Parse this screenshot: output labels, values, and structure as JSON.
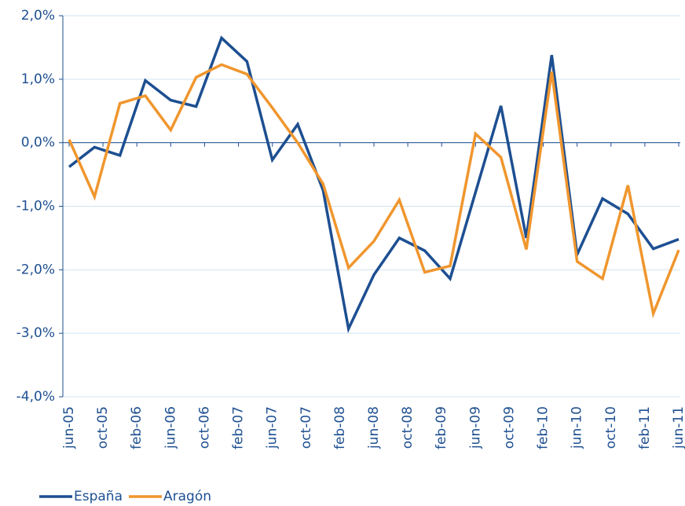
{
  "chart_data": {
    "type": "line",
    "x": [
      0,
      3,
      6,
      9,
      12,
      15,
      18,
      21,
      24,
      27,
      30,
      33,
      36,
      39,
      42,
      45,
      48,
      51,
      54,
      57,
      60,
      63,
      66,
      69,
      72
    ],
    "xlim": [
      0,
      72
    ],
    "xticks": [
      {
        "value": 0,
        "label": "jun-05"
      },
      {
        "value": 4,
        "label": "oct-05"
      },
      {
        "value": 8,
        "label": "feb-06"
      },
      {
        "value": 12,
        "label": "jun-06"
      },
      {
        "value": 16,
        "label": "oct-06"
      },
      {
        "value": 20,
        "label": "feb-07"
      },
      {
        "value": 24,
        "label": "jun-07"
      },
      {
        "value": 28,
        "label": "oct-07"
      },
      {
        "value": 32,
        "label": "feb-08"
      },
      {
        "value": 36,
        "label": "jun-08"
      },
      {
        "value": 40,
        "label": "oct-08"
      },
      {
        "value": 44,
        "label": "feb-09"
      },
      {
        "value": 48,
        "label": "jun-09"
      },
      {
        "value": 52,
        "label": "oct-09"
      },
      {
        "value": 56,
        "label": "feb-10"
      },
      {
        "value": 60,
        "label": "jun-10"
      },
      {
        "value": 64,
        "label": "oct-10"
      },
      {
        "value": 68,
        "label": "feb-11"
      },
      {
        "value": 72,
        "label": "jun-11"
      }
    ],
    "ylim": [
      -4,
      2
    ],
    "yticks": [
      {
        "value": -4,
        "label": "-4,0%"
      },
      {
        "value": -3,
        "label": "-3,0%"
      },
      {
        "value": -2,
        "label": "-2,0%"
      },
      {
        "value": -1,
        "label": "-1,0%"
      },
      {
        "value": 0,
        "label": "0,0%"
      },
      {
        "value": 1,
        "label": "1,0%"
      },
      {
        "value": 2,
        "label": "2,0%"
      }
    ],
    "grid": true,
    "legend": "bottom-left",
    "series": [
      {
        "name": "España",
        "color": "#1d4f91",
        "values": [
          -0.38,
          -0.07,
          -0.2,
          0.98,
          0.67,
          0.57,
          1.65,
          1.28,
          -0.27,
          0.29,
          -0.75,
          -2.93,
          -2.08,
          -1.5,
          -1.7,
          -2.14,
          -0.78,
          0.58,
          -1.5,
          1.38,
          -1.76,
          -0.88,
          -1.12,
          -1.67,
          -1.52
        ]
      },
      {
        "name": "Aragón",
        "color": "#f0962e",
        "values": [
          0.05,
          -0.85,
          0.62,
          0.74,
          0.2,
          1.03,
          1.23,
          1.08,
          0.55,
          0.0,
          -0.65,
          -1.97,
          -1.55,
          -0.9,
          -2.04,
          -1.94,
          0.14,
          -0.23,
          -1.68,
          1.12,
          -1.87,
          -2.14,
          -0.67,
          -2.69,
          -1.69
        ]
      }
    ]
  }
}
